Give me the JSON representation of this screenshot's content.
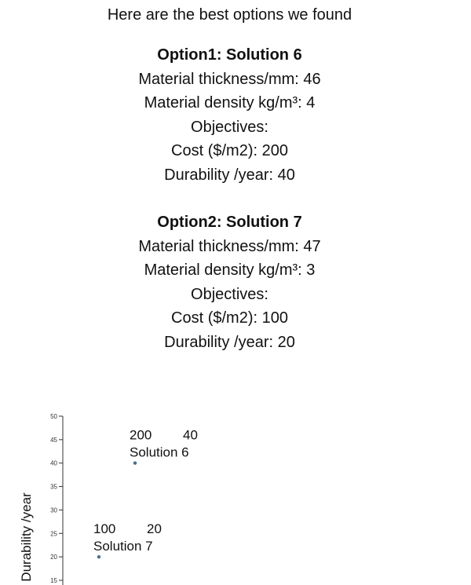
{
  "heading": "Here are the best options we found",
  "options": [
    {
      "title": "Option1: Solution 6",
      "thickness_label": "Material thickness/mm: 46",
      "density_label": "Material density kg/m³: 4",
      "objectives_label": "Objectives:",
      "cost_label": "Cost ($/m2): 200",
      "durability_label": "Durability /year: 40"
    },
    {
      "title": "Option2: Solution 7",
      "thickness_label": "Material thickness/mm: 47",
      "density_label": "Material density kg/m³: 3",
      "objectives_label": "Objectives:",
      "cost_label": "Cost ($/m2): 100",
      "durability_label": "Durability /year: 20"
    }
  ],
  "chart_data": {
    "type": "scatter",
    "title": "",
    "xlabel": "",
    "ylabel": "Durability /year",
    "ylim": [
      15,
      50
    ],
    "y_ticks": [
      15,
      20,
      25,
      30,
      35,
      40,
      45,
      50
    ],
    "x_visible": false,
    "point_color": "#4a6f8f",
    "points": [
      {
        "name": "Solution 6",
        "cost": 200,
        "durability": 40,
        "cost_text": "200",
        "durability_text": "40"
      },
      {
        "name": "Solution 7",
        "cost": 100,
        "durability": 20,
        "cost_text": "100",
        "durability_text": "20"
      }
    ]
  }
}
